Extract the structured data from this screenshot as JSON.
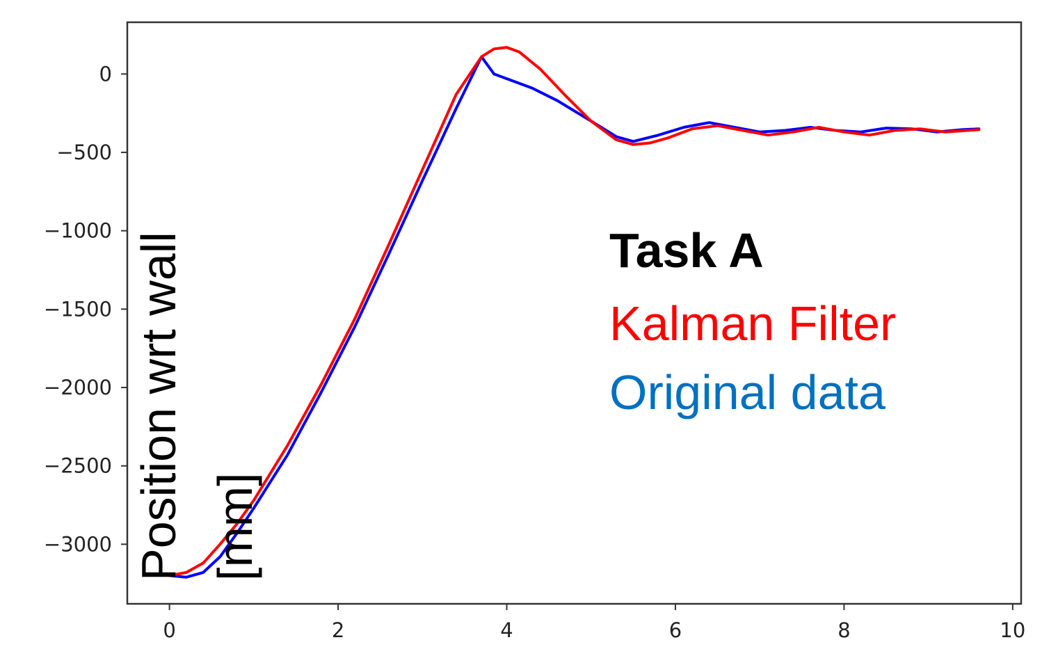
{
  "chart_data": {
    "type": "line",
    "title": "",
    "xlabel": "",
    "ylabel": "Position wrt wall [mm]",
    "ylabel_lines": [
      "Position wrt wall",
      "[mm]"
    ],
    "xlim": [
      -0.5,
      10.1
    ],
    "ylim": [
      -3380,
      330
    ],
    "x_ticks": [
      0,
      2,
      4,
      6,
      8,
      10
    ],
    "y_ticks": [
      0,
      -500,
      -1000,
      -1500,
      -2000,
      -2500,
      -3000
    ],
    "x_tick_labels": [
      "0",
      "2",
      "4",
      "6",
      "8",
      "10"
    ],
    "y_tick_labels": [
      "0",
      "−500",
      "−1000",
      "−1500",
      "−2000",
      "−2500",
      "−3000"
    ],
    "grid": false,
    "annotations": [
      "Task A",
      "Kalman Filter",
      "Original data"
    ],
    "series": [
      {
        "name": "Kalman Filter",
        "color": "#ff0000",
        "x": [
          0,
          0.2,
          0.4,
          0.6,
          0.8,
          1.0,
          1.4,
          1.8,
          2.2,
          2.6,
          3.0,
          3.4,
          3.7,
          3.85,
          4.0,
          4.15,
          4.4,
          4.7,
          5.0,
          5.3,
          5.5,
          5.7,
          5.9,
          6.2,
          6.5,
          6.8,
          7.1,
          7.4,
          7.7,
          8.0,
          8.3,
          8.6,
          8.9,
          9.2,
          9.6
        ],
        "y": [
          -3200,
          -3180,
          -3120,
          -3000,
          -2870,
          -2720,
          -2370,
          -1980,
          -1560,
          -1090,
          -610,
          -130,
          110,
          160,
          170,
          140,
          30,
          -140,
          -300,
          -420,
          -450,
          -440,
          -410,
          -350,
          -330,
          -360,
          -390,
          -370,
          -340,
          -370,
          -390,
          -360,
          -350,
          -370,
          -355
        ]
      },
      {
        "name": "Original data",
        "color": "#0000ff",
        "x": [
          0,
          0.2,
          0.4,
          0.6,
          0.8,
          1.0,
          1.4,
          1.8,
          2.2,
          2.6,
          3.0,
          3.4,
          3.7,
          3.85,
          4.0,
          4.3,
          4.6,
          5.0,
          5.3,
          5.5,
          5.8,
          6.1,
          6.4,
          6.7,
          7.0,
          7.3,
          7.6,
          7.9,
          8.2,
          8.5,
          8.8,
          9.1,
          9.4,
          9.6
        ],
        "y": [
          -3200,
          -3210,
          -3180,
          -3080,
          -2930,
          -2770,
          -2430,
          -2030,
          -1610,
          -1150,
          -680,
          -220,
          110,
          0,
          -30,
          -90,
          -170,
          -300,
          -400,
          -430,
          -390,
          -340,
          -310,
          -340,
          -370,
          -360,
          -340,
          -360,
          -370,
          -345,
          -350,
          -370,
          -355,
          -350
        ]
      }
    ]
  }
}
